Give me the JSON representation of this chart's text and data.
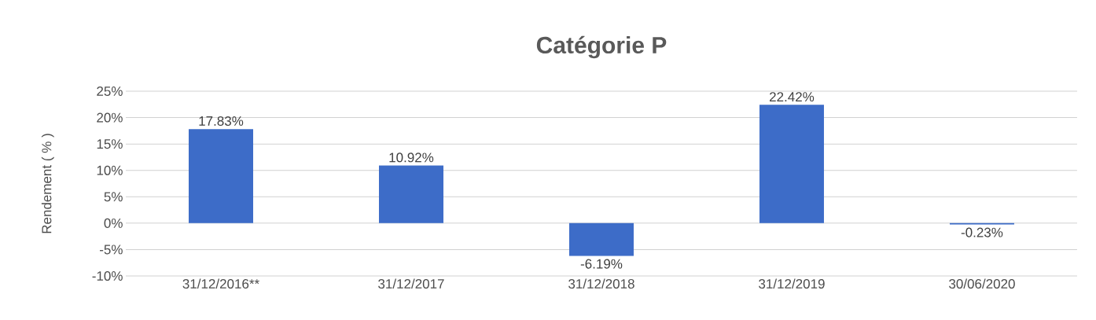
{
  "chart_data": {
    "type": "bar",
    "title": "Catégorie P",
    "ylabel": "Rendement ( % )",
    "categories": [
      "31/12/2016**",
      "31/12/2017",
      "31/12/2018",
      "31/12/2019",
      "30/06/2020"
    ],
    "values": [
      17.83,
      10.92,
      -6.19,
      22.42,
      -0.23
    ],
    "value_labels": [
      "17.83%",
      "10.92%",
      "-6.19%",
      "22.42%",
      "-0.23%"
    ],
    "color": "#3d6cc8",
    "ylim": [
      -10,
      25
    ],
    "yticks": [
      {
        "value": -10,
        "label": "-10%"
      },
      {
        "value": -5,
        "label": "-5%"
      },
      {
        "value": 0,
        "label": "0%"
      },
      {
        "value": 5,
        "label": "5%"
      },
      {
        "value": 10,
        "label": "10%"
      },
      {
        "value": 15,
        "label": "15%"
      },
      {
        "value": 20,
        "label": "20%"
      },
      {
        "value": 25,
        "label": "25%"
      }
    ],
    "grid": "y"
  }
}
